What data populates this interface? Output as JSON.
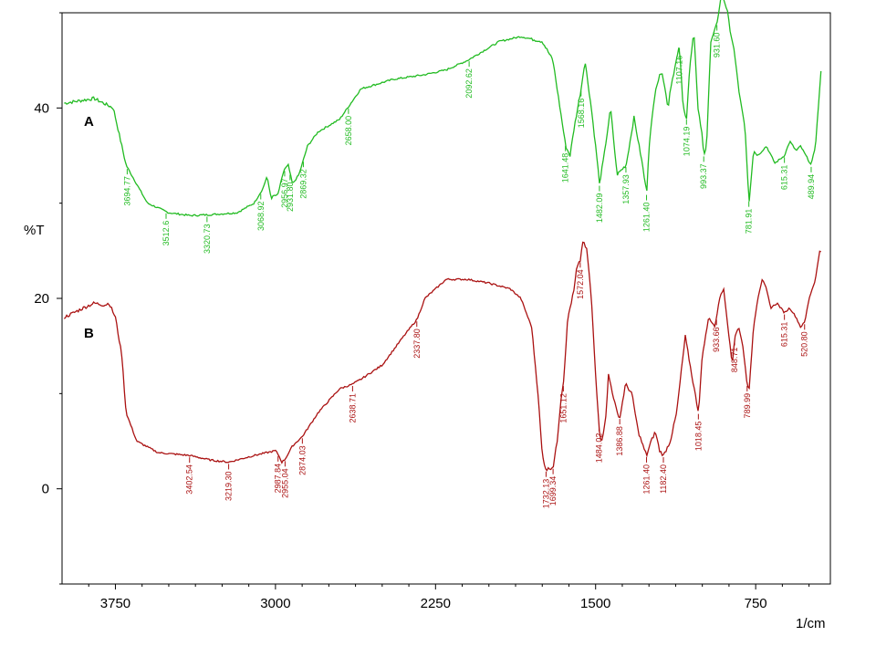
{
  "chart_data": {
    "type": "line",
    "xlabel": "1/cm",
    "ylabel": "%T",
    "x_ticks": [
      3750,
      3000,
      2250,
      1500,
      750
    ],
    "y_ticks": [
      0,
      20,
      40
    ],
    "xlim": [
      4000,
      400
    ],
    "ylim": [
      -10,
      50
    ],
    "grid": false,
    "series": [
      {
        "name": "A",
        "color": "#22bb22",
        "points": [
          [
            3990,
            40.5
          ],
          [
            3850,
            41
          ],
          [
            3760,
            40
          ],
          [
            3700,
            34
          ],
          [
            3600,
            30
          ],
          [
            3500,
            29
          ],
          [
            3400,
            28.7
          ],
          [
            3300,
            28.8
          ],
          [
            3180,
            29
          ],
          [
            3100,
            30
          ],
          [
            3060,
            31.5
          ],
          [
            3040,
            32.8
          ],
          [
            3020,
            30.5
          ],
          [
            3008,
            30.8
          ],
          [
            2990,
            30.8
          ],
          [
            2960,
            33.5
          ],
          [
            2940,
            34
          ],
          [
            2920,
            32
          ],
          [
            2890,
            33
          ],
          [
            2850,
            36
          ],
          [
            2800,
            37.5
          ],
          [
            2700,
            38.8
          ],
          [
            2600,
            42
          ],
          [
            2450,
            43
          ],
          [
            2300,
            43.5
          ],
          [
            2200,
            44
          ],
          [
            2100,
            45
          ],
          [
            1950,
            47
          ],
          [
            1850,
            47.5
          ],
          [
            1750,
            47
          ],
          [
            1700,
            45
          ],
          [
            1640,
            36
          ],
          [
            1620,
            35
          ],
          [
            1600,
            38
          ],
          [
            1568,
            42
          ],
          [
            1550,
            45
          ],
          [
            1520,
            40
          ],
          [
            1490,
            34
          ],
          [
            1482,
            32
          ],
          [
            1460,
            35
          ],
          [
            1430,
            40
          ],
          [
            1400,
            33
          ],
          [
            1357,
            34
          ],
          [
            1320,
            39
          ],
          [
            1280,
            34
          ],
          [
            1261,
            31
          ],
          [
            1250,
            36
          ],
          [
            1220,
            42
          ],
          [
            1190,
            44
          ],
          [
            1160,
            40
          ],
          [
            1150,
            42
          ],
          [
            1107,
            46.5
          ],
          [
            1090,
            40
          ],
          [
            1074,
            39
          ],
          [
            1060,
            44
          ],
          [
            1040,
            48
          ],
          [
            1020,
            40
          ],
          [
            1000,
            37
          ],
          [
            993,
            35
          ],
          [
            980,
            36
          ],
          [
            960,
            47
          ],
          [
            930,
            49
          ],
          [
            910,
            52
          ],
          [
            880,
            50
          ],
          [
            870,
            48
          ],
          [
            850,
            46
          ],
          [
            830,
            42
          ],
          [
            800,
            38
          ],
          [
            781,
            30
          ],
          [
            760,
            35.5
          ],
          [
            740,
            35
          ],
          [
            700,
            36
          ],
          [
            660,
            34.2
          ],
          [
            615,
            35
          ],
          [
            590,
            36.5
          ],
          [
            560,
            35.5
          ],
          [
            540,
            36
          ],
          [
            490,
            34
          ],
          [
            470,
            36
          ],
          [
            450,
            42
          ],
          [
            440,
            45
          ]
        ],
        "peak_labels": [
          "3694.77",
          "3512.6",
          "3320.73",
          "3068.92",
          "2956.97",
          "2931.80",
          "2869.32",
          "2658.00",
          "2092.62",
          "1641.48",
          "1568.16",
          "1482.09",
          "1357.93",
          "1261.40",
          "1107.16",
          "1074.19",
          "993.37",
          "931.60",
          "781.91",
          "615.31",
          "489.94"
        ]
      },
      {
        "name": "B",
        "color": "#aa1111",
        "points": [
          [
            3990,
            18
          ],
          [
            3900,
            19
          ],
          [
            3850,
            19.5
          ],
          [
            3800,
            19.3
          ],
          [
            3780,
            19.5
          ],
          [
            3750,
            18
          ],
          [
            3720,
            14
          ],
          [
            3700,
            8
          ],
          [
            3650,
            5
          ],
          [
            3550,
            3.8
          ],
          [
            3402,
            3.5
          ],
          [
            3300,
            3
          ],
          [
            3219,
            2.8
          ],
          [
            3100,
            3.5
          ],
          [
            3000,
            4
          ],
          [
            2987,
            3.6
          ],
          [
            2970,
            2.8
          ],
          [
            2955,
            3.1
          ],
          [
            2920,
            4.5
          ],
          [
            2874,
            5.5
          ],
          [
            2800,
            8
          ],
          [
            2700,
            10.5
          ],
          [
            2638,
            11
          ],
          [
            2600,
            11.5
          ],
          [
            2500,
            13
          ],
          [
            2400,
            16
          ],
          [
            2337,
            17.8
          ],
          [
            2300,
            20
          ],
          [
            2200,
            22
          ],
          [
            2100,
            22
          ],
          [
            2000,
            21.6
          ],
          [
            1900,
            21
          ],
          [
            1850,
            20
          ],
          [
            1800,
            17
          ],
          [
            1770,
            10
          ],
          [
            1750,
            3.5
          ],
          [
            1732,
            2
          ],
          [
            1699,
            2.3
          ],
          [
            1680,
            5
          ],
          [
            1660,
            10
          ],
          [
            1651,
            11
          ],
          [
            1630,
            18
          ],
          [
            1600,
            21
          ],
          [
            1590,
            23
          ],
          [
            1572,
            24
          ],
          [
            1560,
            26
          ],
          [
            1540,
            25
          ],
          [
            1520,
            20
          ],
          [
            1500,
            12
          ],
          [
            1480,
            5.5
          ],
          [
            1470,
            5
          ],
          [
            1450,
            8
          ],
          [
            1440,
            12
          ],
          [
            1420,
            10
          ],
          [
            1400,
            8
          ],
          [
            1386,
            7.5
          ],
          [
            1360,
            11
          ],
          [
            1330,
            10
          ],
          [
            1300,
            6
          ],
          [
            1270,
            4
          ],
          [
            1261,
            3.5
          ],
          [
            1240,
            5
          ],
          [
            1220,
            6
          ],
          [
            1200,
            4
          ],
          [
            1182,
            3.5
          ],
          [
            1150,
            5
          ],
          [
            1120,
            8
          ],
          [
            1100,
            12
          ],
          [
            1080,
            16
          ],
          [
            1050,
            12
          ],
          [
            1018,
            8
          ],
          [
            1000,
            14
          ],
          [
            970,
            18
          ],
          [
            940,
            17
          ],
          [
            920,
            20
          ],
          [
            900,
            21
          ],
          [
            880,
            17
          ],
          [
            860,
            13
          ],
          [
            848,
            16
          ],
          [
            830,
            17
          ],
          [
            810,
            15
          ],
          [
            790,
            11
          ],
          [
            780,
            10.5
          ],
          [
            760,
            17
          ],
          [
            740,
            20
          ],
          [
            720,
            22
          ],
          [
            700,
            21
          ],
          [
            680,
            19
          ],
          [
            650,
            19.5
          ],
          [
            615,
            18.5
          ],
          [
            590,
            19
          ],
          [
            560,
            18
          ],
          [
            540,
            17
          ],
          [
            520,
            17.5
          ],
          [
            500,
            20
          ],
          [
            470,
            22
          ],
          [
            450,
            25
          ],
          [
            440,
            25
          ]
        ],
        "peak_labels": [
          "3402.54",
          "3219.30",
          "2987.84",
          "2955.04",
          "2874.03",
          "2638.71",
          "2337.80",
          "1732.13",
          "1699.34",
          "1651.12",
          "1572.04",
          "1484.02",
          "1386.88",
          "1261.40",
          "1182.40",
          "1018.45",
          "933.66",
          "848.71",
          "789.99",
          "615.31",
          "520.80"
        ]
      }
    ]
  }
}
